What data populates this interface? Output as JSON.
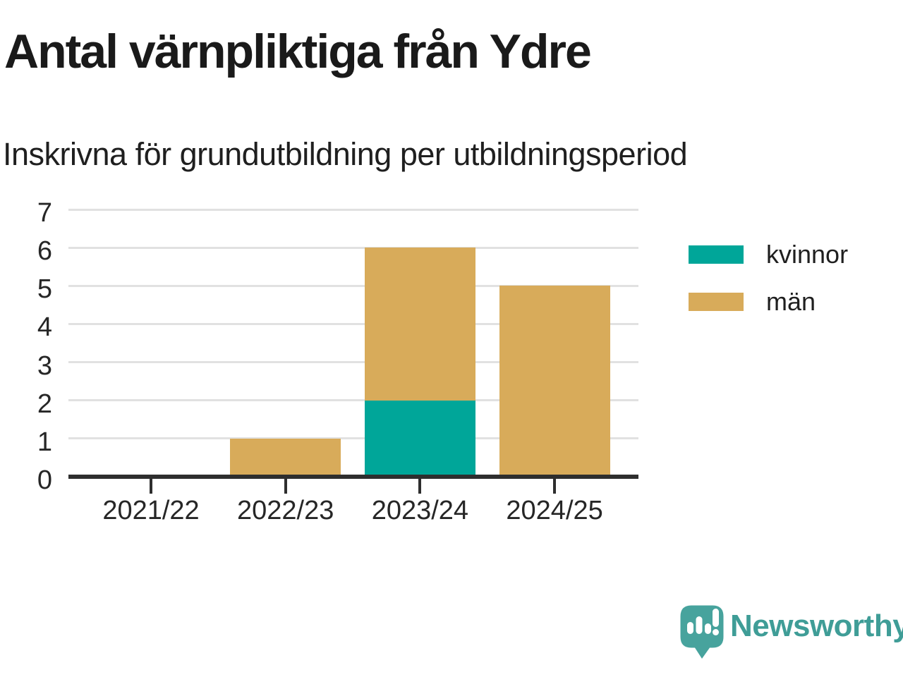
{
  "page": {
    "background": "#ffffff"
  },
  "chart_data": {
    "type": "bar",
    "stacked": true,
    "title": "Antal värnpliktiga från Ydre",
    "subtitle": "Inskrivna för grundutbildning per utbildningsperiod",
    "categories": [
      "2021/22",
      "2022/23",
      "2023/24",
      "2024/25"
    ],
    "series": [
      {
        "name": "kvinnor",
        "color": "#00a699",
        "values": [
          0,
          0,
          2,
          0
        ]
      },
      {
        "name": "män",
        "color": "#d8ab5a",
        "values": [
          0,
          1,
          4,
          5
        ]
      }
    ],
    "ylim": [
      0,
      7
    ],
    "yticks": [
      0,
      1,
      2,
      3,
      4,
      5,
      6,
      7
    ],
    "grid": true,
    "legend_position": "right",
    "grid_color": "#e1e1e1",
    "axis_color": "#2e2e2e",
    "label_color": "#262626"
  },
  "footer": {
    "brand": "Newsworthy",
    "brand_color": "#3f9d97",
    "icon_color": "#47a39d"
  }
}
